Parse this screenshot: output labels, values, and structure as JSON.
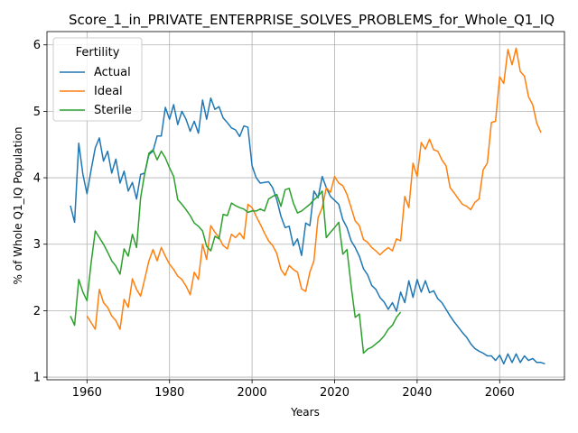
{
  "chart_data": {
    "type": "line",
    "title": "Score_1_in_PRIVATE_ENTERPRISE_SOLVES_PROBLEMS_for_Whole_Q1_IQ",
    "xlabel": "Years",
    "ylabel": "% of Whole Q1_IQ Population",
    "xlim": [
      1950.3,
      2075.7
    ],
    "ylim": [
      0.96,
      6.2
    ],
    "xticks": [
      1960,
      1980,
      2000,
      2020,
      2040,
      2060
    ],
    "yticks": [
      1,
      2,
      3,
      4,
      5,
      6
    ],
    "grid": true,
    "legend": {
      "title": "Fertility",
      "placement": "top-left"
    },
    "series": [
      {
        "name": "Actual",
        "color": "#1f77b4",
        "points": [
          [
            1956,
            3.58
          ],
          [
            1957,
            3.33
          ],
          [
            1958,
            4.52
          ],
          [
            1959,
            4.05
          ],
          [
            1960,
            3.76
          ],
          [
            1961,
            4.12
          ],
          [
            1962,
            4.45
          ],
          [
            1963,
            4.6
          ],
          [
            1964,
            4.25
          ],
          [
            1965,
            4.4
          ],
          [
            1966,
            4.07
          ],
          [
            1967,
            4.28
          ],
          [
            1968,
            3.92
          ],
          [
            1969,
            4.1
          ],
          [
            1970,
            3.8
          ],
          [
            1971,
            3.93
          ],
          [
            1972,
            3.68
          ],
          [
            1973,
            4.05
          ],
          [
            1974,
            4.07
          ],
          [
            1975,
            4.35
          ],
          [
            1976,
            4.4
          ],
          [
            1977,
            4.63
          ],
          [
            1978,
            4.63
          ],
          [
            1979,
            5.06
          ],
          [
            1980,
            4.88
          ],
          [
            1981,
            5.1
          ],
          [
            1982,
            4.8
          ],
          [
            1983,
            5.0
          ],
          [
            1984,
            4.88
          ],
          [
            1985,
            4.7
          ],
          [
            1986,
            4.85
          ],
          [
            1987,
            4.67
          ],
          [
            1988,
            5.17
          ],
          [
            1989,
            4.88
          ],
          [
            1990,
            5.2
          ],
          [
            1991,
            5.03
          ],
          [
            1992,
            5.07
          ],
          [
            1993,
            4.9
          ],
          [
            1994,
            4.83
          ],
          [
            1995,
            4.75
          ],
          [
            1996,
            4.72
          ],
          [
            1997,
            4.62
          ],
          [
            1998,
            4.78
          ],
          [
            1999,
            4.76
          ],
          [
            2000,
            4.18
          ],
          [
            2001,
            4.0
          ],
          [
            2002,
            3.92
          ],
          [
            2003,
            3.93
          ],
          [
            2004,
            3.94
          ],
          [
            2005,
            3.85
          ],
          [
            2006,
            3.67
          ],
          [
            2007,
            3.42
          ],
          [
            2008,
            3.25
          ],
          [
            2009,
            3.27
          ],
          [
            2010,
            2.98
          ],
          [
            2011,
            3.08
          ],
          [
            2012,
            2.83
          ],
          [
            2013,
            3.32
          ],
          [
            2014,
            3.28
          ],
          [
            2015,
            3.8
          ],
          [
            2016,
            3.7
          ],
          [
            2017,
            4.02
          ],
          [
            2018,
            3.85
          ],
          [
            2019,
            3.72
          ],
          [
            2020,
            3.66
          ],
          [
            2021,
            3.6
          ],
          [
            2022,
            3.37
          ],
          [
            2023,
            3.25
          ],
          [
            2024,
            3.05
          ],
          [
            2025,
            2.95
          ],
          [
            2026,
            2.82
          ],
          [
            2027,
            2.63
          ],
          [
            2028,
            2.54
          ],
          [
            2029,
            2.38
          ],
          [
            2030,
            2.32
          ],
          [
            2031,
            2.2
          ],
          [
            2032,
            2.13
          ],
          [
            2033,
            2.02
          ],
          [
            2034,
            2.12
          ],
          [
            2035,
            1.99
          ],
          [
            2036,
            2.28
          ],
          [
            2037,
            2.12
          ],
          [
            2038,
            2.45
          ],
          [
            2039,
            2.2
          ],
          [
            2040,
            2.47
          ],
          [
            2041,
            2.28
          ],
          [
            2042,
            2.45
          ],
          [
            2043,
            2.27
          ],
          [
            2044,
            2.3
          ],
          [
            2045,
            2.18
          ],
          [
            2046,
            2.12
          ],
          [
            2047,
            2.02
          ],
          [
            2048,
            1.92
          ],
          [
            2049,
            1.83
          ],
          [
            2050,
            1.75
          ],
          [
            2051,
            1.67
          ],
          [
            2052,
            1.6
          ],
          [
            2053,
            1.5
          ],
          [
            2054,
            1.43
          ],
          [
            2055,
            1.39
          ],
          [
            2056,
            1.36
          ],
          [
            2057,
            1.32
          ],
          [
            2058,
            1.32
          ],
          [
            2059,
            1.25
          ],
          [
            2060,
            1.33
          ],
          [
            2061,
            1.2
          ],
          [
            2062,
            1.35
          ],
          [
            2063,
            1.22
          ],
          [
            2064,
            1.35
          ],
          [
            2065,
            1.22
          ],
          [
            2066,
            1.32
          ],
          [
            2067,
            1.25
          ],
          [
            2068,
            1.28
          ],
          [
            2069,
            1.22
          ],
          [
            2070,
            1.22
          ],
          [
            2071,
            1.2
          ]
        ]
      },
      {
        "name": "Ideal",
        "color": "#ff7f0e",
        "points": [
          [
            1960,
            1.92
          ],
          [
            1961,
            1.82
          ],
          [
            1962,
            1.72
          ],
          [
            1963,
            2.32
          ],
          [
            1964,
            2.12
          ],
          [
            1965,
            2.05
          ],
          [
            1966,
            1.92
          ],
          [
            1967,
            1.85
          ],
          [
            1968,
            1.72
          ],
          [
            1969,
            2.17
          ],
          [
            1970,
            2.05
          ],
          [
            1971,
            2.48
          ],
          [
            1972,
            2.32
          ],
          [
            1973,
            2.22
          ],
          [
            1974,
            2.48
          ],
          [
            1975,
            2.75
          ],
          [
            1976,
            2.92
          ],
          [
            1977,
            2.75
          ],
          [
            1978,
            2.95
          ],
          [
            1979,
            2.82
          ],
          [
            1980,
            2.7
          ],
          [
            1981,
            2.62
          ],
          [
            1982,
            2.52
          ],
          [
            1983,
            2.47
          ],
          [
            1984,
            2.37
          ],
          [
            1985,
            2.24
          ],
          [
            1986,
            2.58
          ],
          [
            1987,
            2.47
          ],
          [
            1988,
            3.0
          ],
          [
            1989,
            2.77
          ],
          [
            1990,
            3.28
          ],
          [
            1991,
            3.18
          ],
          [
            1992,
            3.1
          ],
          [
            1993,
            2.98
          ],
          [
            1994,
            2.93
          ],
          [
            1995,
            3.15
          ],
          [
            1996,
            3.1
          ],
          [
            1997,
            3.17
          ],
          [
            1998,
            3.08
          ],
          [
            1999,
            3.6
          ],
          [
            2000,
            3.55
          ],
          [
            2001,
            3.42
          ],
          [
            2002,
            3.3
          ],
          [
            2003,
            3.17
          ],
          [
            2004,
            3.05
          ],
          [
            2005,
            2.98
          ],
          [
            2006,
            2.86
          ],
          [
            2007,
            2.62
          ],
          [
            2008,
            2.53
          ],
          [
            2009,
            2.68
          ],
          [
            2010,
            2.62
          ],
          [
            2011,
            2.58
          ],
          [
            2012,
            2.33
          ],
          [
            2013,
            2.29
          ],
          [
            2014,
            2.58
          ],
          [
            2015,
            2.75
          ],
          [
            2016,
            3.4
          ],
          [
            2017,
            3.55
          ],
          [
            2018,
            3.85
          ],
          [
            2019,
            3.78
          ],
          [
            2020,
            4.02
          ],
          [
            2021,
            3.92
          ],
          [
            2022,
            3.88
          ],
          [
            2023,
            3.75
          ],
          [
            2024,
            3.55
          ],
          [
            2025,
            3.35
          ],
          [
            2026,
            3.28
          ],
          [
            2027,
            3.07
          ],
          [
            2028,
            3.03
          ],
          [
            2029,
            2.95
          ],
          [
            2030,
            2.9
          ],
          [
            2031,
            2.84
          ],
          [
            2032,
            2.9
          ],
          [
            2033,
            2.95
          ],
          [
            2034,
            2.9
          ],
          [
            2035,
            3.08
          ],
          [
            2036,
            3.05
          ],
          [
            2037,
            3.72
          ],
          [
            2038,
            3.55
          ],
          [
            2039,
            4.22
          ],
          [
            2040,
            4.02
          ],
          [
            2041,
            4.53
          ],
          [
            2042,
            4.43
          ],
          [
            2043,
            4.58
          ],
          [
            2044,
            4.42
          ],
          [
            2045,
            4.4
          ],
          [
            2046,
            4.27
          ],
          [
            2047,
            4.18
          ],
          [
            2048,
            3.85
          ],
          [
            2049,
            3.77
          ],
          [
            2050,
            3.68
          ],
          [
            2051,
            3.6
          ],
          [
            2052,
            3.57
          ],
          [
            2053,
            3.52
          ],
          [
            2054,
            3.63
          ],
          [
            2055,
            3.68
          ],
          [
            2056,
            4.12
          ],
          [
            2057,
            4.22
          ],
          [
            2058,
            4.83
          ],
          [
            2059,
            4.85
          ],
          [
            2060,
            5.52
          ],
          [
            2061,
            5.42
          ],
          [
            2062,
            5.93
          ],
          [
            2063,
            5.7
          ],
          [
            2064,
            5.95
          ],
          [
            2065,
            5.6
          ],
          [
            2066,
            5.53
          ],
          [
            2067,
            5.22
          ],
          [
            2068,
            5.1
          ],
          [
            2069,
            4.82
          ],
          [
            2070,
            4.68
          ]
        ]
      },
      {
        "name": "Sterile",
        "color": "#2ca02c",
        "points": [
          [
            1956,
            1.92
          ],
          [
            1957,
            1.78
          ],
          [
            1958,
            2.47
          ],
          [
            1959,
            2.28
          ],
          [
            1960,
            2.15
          ],
          [
            1961,
            2.72
          ],
          [
            1962,
            3.2
          ],
          [
            1963,
            3.1
          ],
          [
            1964,
            3.0
          ],
          [
            1965,
            2.88
          ],
          [
            1966,
            2.75
          ],
          [
            1967,
            2.67
          ],
          [
            1968,
            2.55
          ],
          [
            1969,
            2.93
          ],
          [
            1970,
            2.82
          ],
          [
            1971,
            3.15
          ],
          [
            1972,
            2.95
          ],
          [
            1973,
            3.7
          ],
          [
            1974,
            4.07
          ],
          [
            1975,
            4.37
          ],
          [
            1976,
            4.42
          ],
          [
            1977,
            4.27
          ],
          [
            1978,
            4.4
          ],
          [
            1979,
            4.3
          ],
          [
            1980,
            4.15
          ],
          [
            1981,
            4.02
          ],
          [
            1982,
            3.67
          ],
          [
            1983,
            3.6
          ],
          [
            1984,
            3.52
          ],
          [
            1985,
            3.43
          ],
          [
            1986,
            3.32
          ],
          [
            1987,
            3.27
          ],
          [
            1988,
            3.2
          ],
          [
            1989,
            2.97
          ],
          [
            1990,
            2.9
          ],
          [
            1991,
            3.12
          ],
          [
            1992,
            3.08
          ],
          [
            1993,
            3.45
          ],
          [
            1994,
            3.43
          ],
          [
            1995,
            3.62
          ],
          [
            1996,
            3.58
          ],
          [
            1997,
            3.55
          ],
          [
            1998,
            3.53
          ],
          [
            1999,
            3.48
          ],
          [
            2000,
            3.5
          ],
          [
            2001,
            3.5
          ],
          [
            2002,
            3.53
          ],
          [
            2003,
            3.5
          ],
          [
            2004,
            3.68
          ],
          [
            2005,
            3.72
          ],
          [
            2006,
            3.75
          ],
          [
            2007,
            3.57
          ],
          [
            2008,
            3.82
          ],
          [
            2009,
            3.84
          ],
          [
            2010,
            3.62
          ],
          [
            2011,
            3.47
          ],
          [
            2012,
            3.5
          ],
          [
            2013,
            3.55
          ],
          [
            2014,
            3.6
          ],
          [
            2015,
            3.67
          ],
          [
            2016,
            3.72
          ],
          [
            2017,
            3.8
          ],
          [
            2018,
            3.1
          ],
          [
            2019,
            3.18
          ],
          [
            2020,
            3.25
          ],
          [
            2021,
            3.33
          ],
          [
            2022,
            2.85
          ],
          [
            2023,
            2.92
          ],
          [
            2024,
            2.37
          ],
          [
            2025,
            1.9
          ],
          [
            2026,
            1.95
          ],
          [
            2027,
            1.36
          ],
          [
            2028,
            1.42
          ],
          [
            2029,
            1.45
          ],
          [
            2030,
            1.5
          ],
          [
            2031,
            1.55
          ],
          [
            2032,
            1.62
          ],
          [
            2033,
            1.72
          ],
          [
            2034,
            1.78
          ],
          [
            2035,
            1.9
          ],
          [
            2036,
            1.98
          ]
        ]
      }
    ]
  }
}
